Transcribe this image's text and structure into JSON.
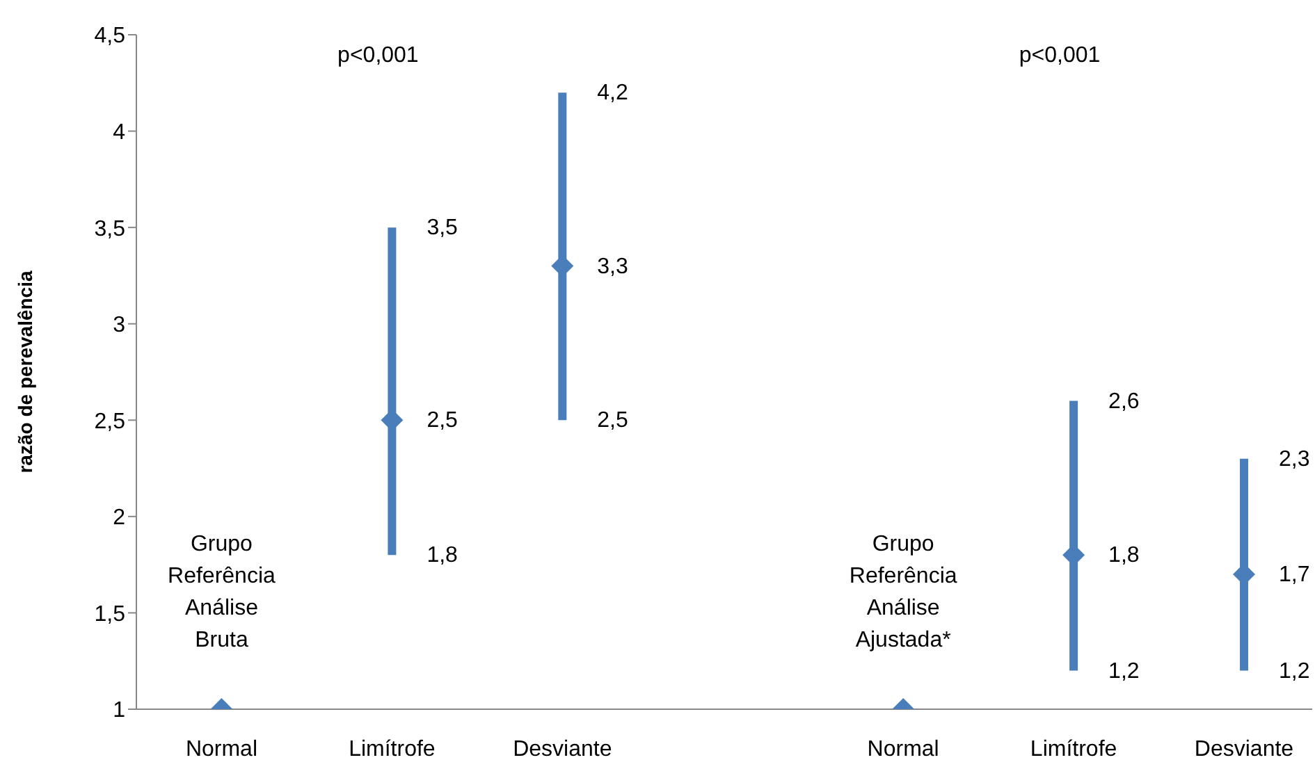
{
  "chart_data": {
    "type": "scatter",
    "ylabel": "razão de perevalência",
    "categories": [
      "Normal",
      "Limítrofe",
      "Desviante",
      null,
      "Normal",
      "Limítrofe",
      "Desviante"
    ],
    "values": [
      1,
      2.5,
      3.3,
      null,
      1,
      1.8,
      1.7
    ],
    "errors": [
      null,
      [
        1.8,
        3.5
      ],
      [
        2.5,
        4.2
      ],
      null,
      null,
      [
        1.2,
        2.6
      ],
      [
        1.2,
        2.3
      ]
    ],
    "value_labels": [
      null,
      "2,5",
      "3,3",
      null,
      null,
      "1,8",
      "1,7"
    ],
    "color": "#4a7ebb",
    "marker": "diamond",
    "grid": false,
    "ylim": [
      1,
      4.5
    ],
    "yticks": [
      1,
      {
        "value": 1.5,
        "label": "1,5"
      },
      2,
      {
        "value": 2.5,
        "label": "2,5"
      },
      3,
      {
        "value": 3.5,
        "label": "3,5"
      },
      4,
      {
        "value": 4.5,
        "label": "4,5"
      }
    ],
    "annotations": [
      "p<0,001",
      "p<0,001",
      "Grupo\nReferência\nAnálise\nBruta",
      "Grupo\nReferência\nAnálise\nAjustada*",
      "3,5",
      "1,8",
      "4,2",
      "2,5",
      "2,6",
      "1,2",
      "2,3",
      "1,2"
    ]
  }
}
